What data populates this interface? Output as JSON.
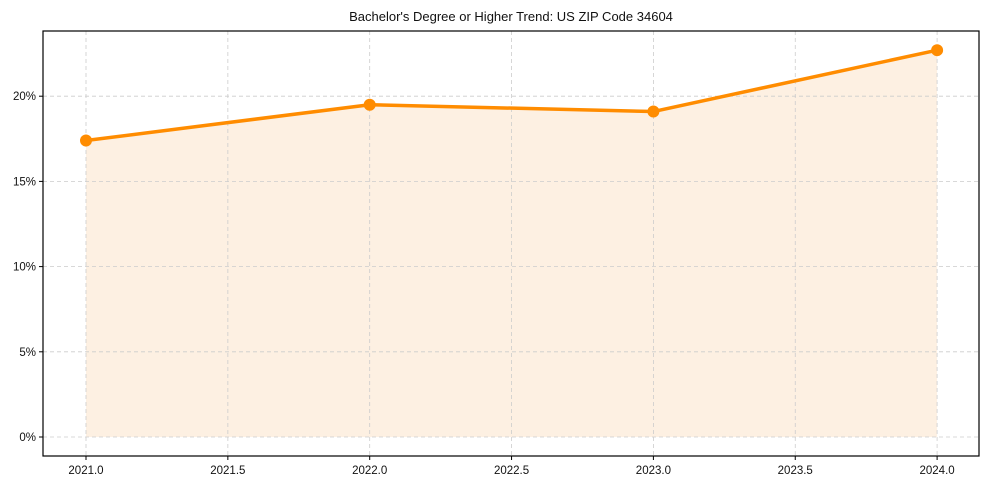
{
  "chart_data": {
    "type": "line",
    "title": "Bachelor's Degree or Higher Trend: US ZIP Code 34604",
    "xlabel": "",
    "ylabel": "",
    "x": [
      2021,
      2022,
      2023,
      2024
    ],
    "series": [
      {
        "name": "Bachelor's Degree or Higher",
        "values": [
          17.4,
          19.5,
          19.1,
          22.7
        ],
        "unit": "%"
      }
    ],
    "xlim": [
      2020.7,
      2024.15
    ],
    "ylim": [
      -1.1,
      23.8
    ],
    "x_ticks": [
      2021.0,
      2021.5,
      2022.0,
      2022.5,
      2023.0,
      2023.5,
      2024.0
    ],
    "x_tick_labels": [
      "2021.0",
      "2021.5",
      "2022.0",
      "2022.5",
      "2023.0",
      "2023.5",
      "2024.0"
    ],
    "y_ticks": [
      0,
      5,
      10,
      15,
      20
    ],
    "y_tick_labels": [
      "0%",
      "5%",
      "10%",
      "15%",
      "20%"
    ],
    "grid": true,
    "grid_style": "dashed",
    "legend": null,
    "fill_under_line": true,
    "colors": {
      "line": "#ff8c00",
      "fill": "#fdf0e2",
      "grid": "#cccccc",
      "axis": "#000000"
    }
  }
}
